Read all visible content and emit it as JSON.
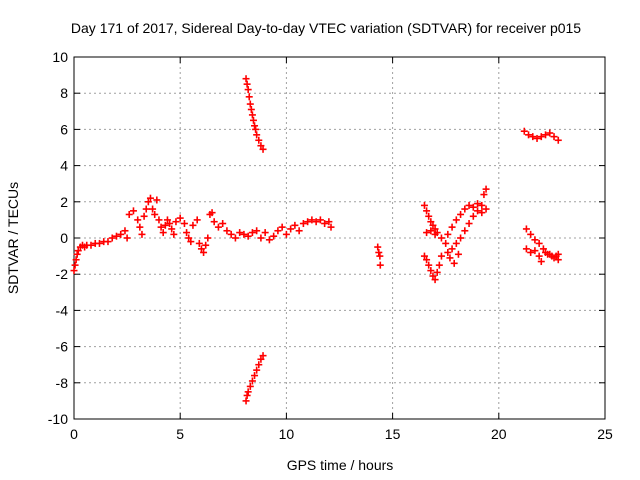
{
  "chart_data": {
    "type": "scatter",
    "title": "Day 171 of 2017, Sidereal Day-to-day VTEC variation (SDTVAR) for receiver p015",
    "xlabel": "GPS time / hours",
    "ylabel": "SDTVAR / TECUs",
    "xlim": [
      0,
      25
    ],
    "ylim": [
      -10,
      10
    ],
    "xticks": [
      0,
      5,
      10,
      15,
      20,
      25
    ],
    "yticks": [
      -10,
      -8,
      -6,
      -4,
      -2,
      0,
      2,
      4,
      6,
      8,
      10
    ],
    "xtick_labels": [
      "0",
      "5",
      "10",
      "15",
      "20",
      "25"
    ],
    "ytick_labels": [
      "-10",
      "-8",
      "-6",
      "-4",
      "-2",
      "0",
      "2",
      "4",
      "6",
      "8",
      "10"
    ],
    "grid": true,
    "legend": "none",
    "marker": "plus",
    "color": "#ff0000",
    "series": [
      {
        "points": [
          [
            0.0,
            -1.8
          ],
          [
            0.05,
            -1.5
          ],
          [
            0.1,
            -1.2
          ],
          [
            0.15,
            -0.9
          ],
          [
            0.2,
            -0.7
          ],
          [
            0.3,
            -0.5
          ],
          [
            0.4,
            -0.4
          ],
          [
            0.5,
            -0.5
          ],
          [
            0.6,
            -0.4
          ],
          [
            0.8,
            -0.4
          ],
          [
            1.0,
            -0.3
          ],
          [
            1.2,
            -0.3
          ],
          [
            1.4,
            -0.2
          ],
          [
            1.6,
            -0.2
          ],
          [
            1.8,
            0.0
          ],
          [
            2.0,
            0.1
          ],
          [
            2.2,
            0.2
          ],
          [
            2.4,
            0.4
          ],
          [
            2.5,
            0.0
          ],
          [
            2.6,
            1.3
          ],
          [
            2.8,
            1.5
          ],
          [
            3.0,
            1.0
          ],
          [
            3.1,
            0.6
          ],
          [
            3.2,
            0.2
          ],
          [
            3.3,
            1.2
          ],
          [
            3.4,
            1.6
          ],
          [
            3.5,
            2.0
          ],
          [
            3.6,
            2.2
          ],
          [
            3.7,
            1.6
          ],
          [
            3.8,
            1.3
          ],
          [
            3.9,
            2.1
          ],
          [
            4.0,
            1.0
          ],
          [
            4.1,
            0.6
          ],
          [
            4.2,
            0.3
          ],
          [
            4.3,
            0.7
          ],
          [
            4.4,
            1.0
          ],
          [
            4.5,
            0.8
          ],
          [
            4.6,
            0.5
          ],
          [
            4.7,
            0.2
          ],
          [
            4.8,
            0.9
          ],
          [
            5.0,
            1.1
          ],
          [
            5.2,
            0.8
          ],
          [
            5.3,
            0.3
          ],
          [
            5.4,
            0.0
          ],
          [
            5.5,
            -0.2
          ],
          [
            5.6,
            0.7
          ],
          [
            5.8,
            1.0
          ],
          [
            5.9,
            -0.3
          ],
          [
            6.0,
            -0.6
          ],
          [
            6.1,
            -0.8
          ],
          [
            6.2,
            -0.4
          ],
          [
            6.3,
            0.0
          ],
          [
            6.4,
            1.3
          ],
          [
            6.5,
            1.4
          ],
          [
            6.6,
            0.9
          ],
          [
            6.8,
            0.6
          ],
          [
            7.0,
            0.8
          ],
          [
            7.2,
            0.4
          ],
          [
            7.4,
            0.2
          ],
          [
            7.6,
            0.0
          ],
          [
            7.8,
            0.3
          ],
          [
            8.0,
            0.2
          ],
          [
            8.2,
            0.1
          ],
          [
            8.4,
            0.3
          ],
          [
            8.6,
            0.4
          ],
          [
            8.8,
            0.0
          ],
          [
            9.0,
            0.3
          ],
          [
            9.2,
            -0.1
          ],
          [
            9.4,
            0.1
          ],
          [
            9.6,
            0.4
          ],
          [
            9.8,
            0.6
          ],
          [
            10.0,
            0.2
          ],
          [
            10.2,
            0.5
          ],
          [
            10.4,
            0.7
          ],
          [
            10.6,
            0.4
          ],
          [
            10.8,
            0.8
          ],
          [
            11.0,
            0.9
          ],
          [
            11.2,
            1.0
          ],
          [
            11.4,
            0.9
          ],
          [
            11.6,
            1.0
          ],
          [
            11.8,
            0.8
          ],
          [
            12.0,
            0.9
          ],
          [
            12.1,
            0.6
          ],
          [
            8.1,
            8.8
          ],
          [
            8.15,
            8.5
          ],
          [
            8.2,
            8.2
          ],
          [
            8.25,
            7.8
          ],
          [
            8.3,
            7.4
          ],
          [
            8.35,
            7.1
          ],
          [
            8.4,
            6.8
          ],
          [
            8.45,
            6.5
          ],
          [
            8.5,
            6.2
          ],
          [
            8.55,
            6.0
          ],
          [
            8.6,
            5.7
          ],
          [
            8.7,
            5.4
          ],
          [
            8.8,
            5.1
          ],
          [
            8.9,
            4.9
          ],
          [
            8.1,
            -9.0
          ],
          [
            8.15,
            -8.7
          ],
          [
            8.2,
            -8.5
          ],
          [
            8.3,
            -8.2
          ],
          [
            8.4,
            -7.9
          ],
          [
            8.5,
            -7.6
          ],
          [
            8.6,
            -7.3
          ],
          [
            8.7,
            -7.0
          ],
          [
            8.8,
            -6.7
          ],
          [
            8.9,
            -6.5
          ],
          [
            14.3,
            -0.5
          ],
          [
            14.35,
            -0.8
          ],
          [
            14.4,
            -1.0
          ],
          [
            14.42,
            -1.5
          ],
          [
            16.5,
            1.8
          ],
          [
            16.6,
            1.5
          ],
          [
            16.7,
            1.2
          ],
          [
            16.8,
            0.9
          ],
          [
            16.9,
            0.7
          ],
          [
            17.0,
            0.5
          ],
          [
            17.1,
            0.3
          ],
          [
            16.5,
            -1.0
          ],
          [
            16.6,
            -1.2
          ],
          [
            16.7,
            -1.5
          ],
          [
            16.8,
            -1.8
          ],
          [
            16.9,
            -2.1
          ],
          [
            17.0,
            -2.3
          ],
          [
            17.1,
            -1.9
          ],
          [
            17.2,
            -1.5
          ],
          [
            17.3,
            -1.0
          ],
          [
            16.6,
            0.3
          ],
          [
            16.8,
            0.4
          ],
          [
            17.0,
            0.2
          ],
          [
            17.3,
            0.0
          ],
          [
            17.5,
            -0.3
          ],
          [
            17.6,
            0.2
          ],
          [
            17.8,
            0.6
          ],
          [
            18.0,
            1.0
          ],
          [
            18.2,
            1.3
          ],
          [
            18.4,
            1.6
          ],
          [
            18.6,
            1.8
          ],
          [
            18.8,
            1.7
          ],
          [
            19.0,
            1.9
          ],
          [
            19.2,
            1.8
          ],
          [
            19.3,
            2.4
          ],
          [
            19.4,
            2.7
          ],
          [
            17.6,
            -0.8
          ],
          [
            17.8,
            -0.6
          ],
          [
            18.0,
            -0.3
          ],
          [
            18.2,
            0.0
          ],
          [
            18.4,
            0.4
          ],
          [
            18.6,
            0.8
          ],
          [
            18.8,
            1.2
          ],
          [
            19.0,
            1.5
          ],
          [
            19.2,
            1.4
          ],
          [
            19.4,
            1.6
          ],
          [
            17.7,
            -1.1
          ],
          [
            17.9,
            -1.4
          ],
          [
            18.1,
            -0.9
          ],
          [
            21.2,
            5.9
          ],
          [
            21.4,
            5.7
          ],
          [
            21.6,
            5.6
          ],
          [
            21.8,
            5.5
          ],
          [
            22.0,
            5.6
          ],
          [
            22.2,
            5.7
          ],
          [
            22.4,
            5.8
          ],
          [
            22.6,
            5.6
          ],
          [
            22.8,
            5.4
          ],
          [
            21.3,
            0.5
          ],
          [
            21.5,
            0.2
          ],
          [
            21.7,
            -0.1
          ],
          [
            21.9,
            -0.3
          ],
          [
            22.1,
            -0.6
          ],
          [
            22.3,
            -0.9
          ],
          [
            22.5,
            -1.0
          ],
          [
            22.7,
            -1.0
          ],
          [
            22.8,
            -1.2
          ],
          [
            21.3,
            -0.6
          ],
          [
            21.5,
            -0.8
          ],
          [
            21.7,
            -0.7
          ],
          [
            21.9,
            -1.0
          ],
          [
            22.0,
            -1.3
          ],
          [
            22.2,
            -0.8
          ],
          [
            22.4,
            -0.9
          ],
          [
            22.6,
            -1.1
          ],
          [
            22.8,
            -0.9
          ]
        ]
      }
    ]
  }
}
